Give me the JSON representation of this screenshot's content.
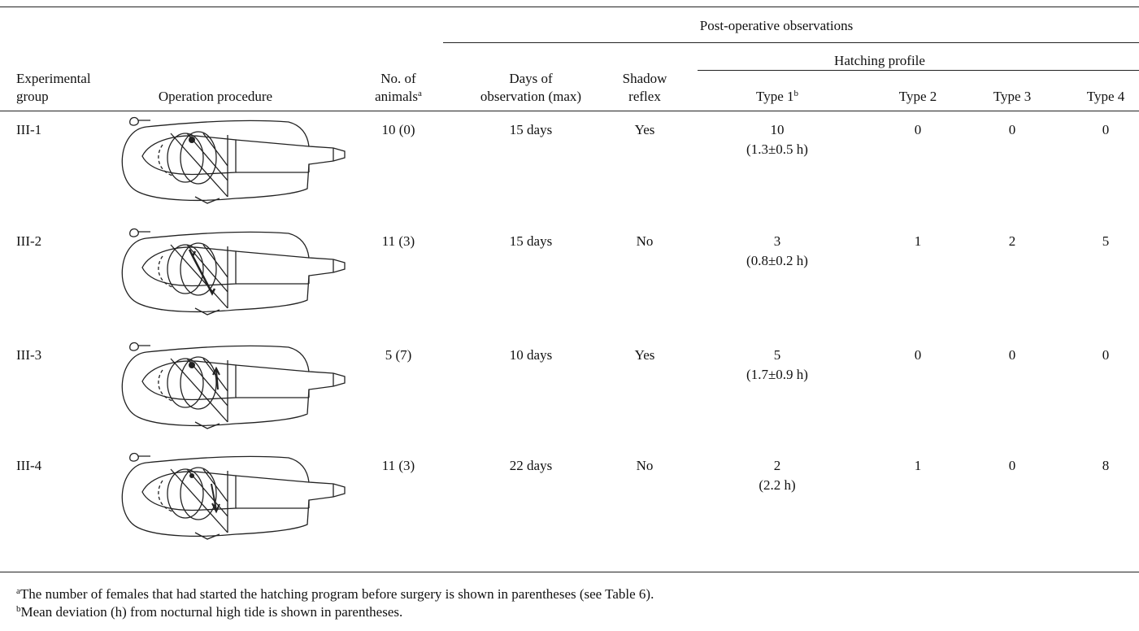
{
  "header": {
    "post_operative": "Post-operative observations",
    "group": [
      "Experimental",
      "group"
    ],
    "procedure": "Operation procedure",
    "animals": [
      "No. of",
      "animals"
    ],
    "animals_note": "a",
    "days": [
      "Days of",
      "observation (max)"
    ],
    "shadow": [
      "Shadow",
      "reflex"
    ],
    "hatching": "Hatching profile",
    "types": [
      "Type 1",
      "Type 2",
      "Type 3",
      "Type 4"
    ],
    "type1_note": "b"
  },
  "rows": [
    {
      "group": "III-1",
      "animals": "10 (0)",
      "days": "15 days",
      "shadow": "Yes",
      "type1": "10",
      "type1_dev": "(1.3±0.5 h)",
      "type2": "0",
      "type3": "0",
      "type4": "0"
    },
    {
      "group": "III-2",
      "animals": "11 (3)",
      "days": "15 days",
      "shadow": "No",
      "type1": "3",
      "type1_dev": "(0.8±0.2 h)",
      "type2": "1",
      "type3": "2",
      "type4": "5"
    },
    {
      "group": "III-3",
      "animals": "5 (7)",
      "days": "10 days",
      "shadow": "Yes",
      "type1": "5",
      "type1_dev": "(1.7±0.9 h)",
      "type2": "0",
      "type3": "0",
      "type4": "0"
    },
    {
      "group": "III-4",
      "animals": "11 (3)",
      "days": "22 days",
      "shadow": "No",
      "type1": "2",
      "type1_dev": "(2.2 h)",
      "type2": "1",
      "type3": "0",
      "type4": "8"
    }
  ],
  "footnotes": [
    {
      "mark": "a",
      "text": "The number of females that had started the hatching program before surgery is shown in parentheses (see Table 6)."
    },
    {
      "mark": "b",
      "text": "Mean deviation (h) from nocturnal high tide is shown in parentheses."
    }
  ]
}
